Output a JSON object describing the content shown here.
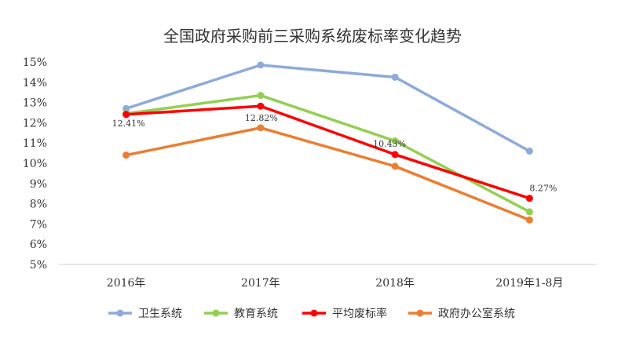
{
  "chart_data": {
    "type": "line",
    "title": "全国政府采购前三采购系统废标率变化趋势",
    "categories": [
      "2016年",
      "2017年",
      "2018年",
      "2019年1-8月"
    ],
    "y_ticks": [
      "5%",
      "6%",
      "7%",
      "8%",
      "9%",
      "10%",
      "11%",
      "12%",
      "13%",
      "14%",
      "15%"
    ],
    "ylim": [
      5,
      15
    ],
    "grid": false,
    "legend_position": "bottom",
    "series": [
      {
        "name": "卫生系统",
        "color": "#8eaadb",
        "values": [
          12.7,
          14.85,
          14.25,
          10.6
        ],
        "labels": []
      },
      {
        "name": "教育系统",
        "color": "#92d050",
        "values": [
          12.45,
          13.35,
          11.1,
          7.6
        ],
        "labels": []
      },
      {
        "name": "平均废标率",
        "color": "#ff0000",
        "values": [
          12.41,
          12.82,
          10.43,
          8.27
        ],
        "labels": [
          "12.41%",
          "12.82%",
          "10.43%",
          "8.27%"
        ]
      },
      {
        "name": "政府办公室系统",
        "color": "#ed7d31",
        "values": [
          10.4,
          11.75,
          9.85,
          7.2
        ],
        "labels": []
      }
    ]
  }
}
